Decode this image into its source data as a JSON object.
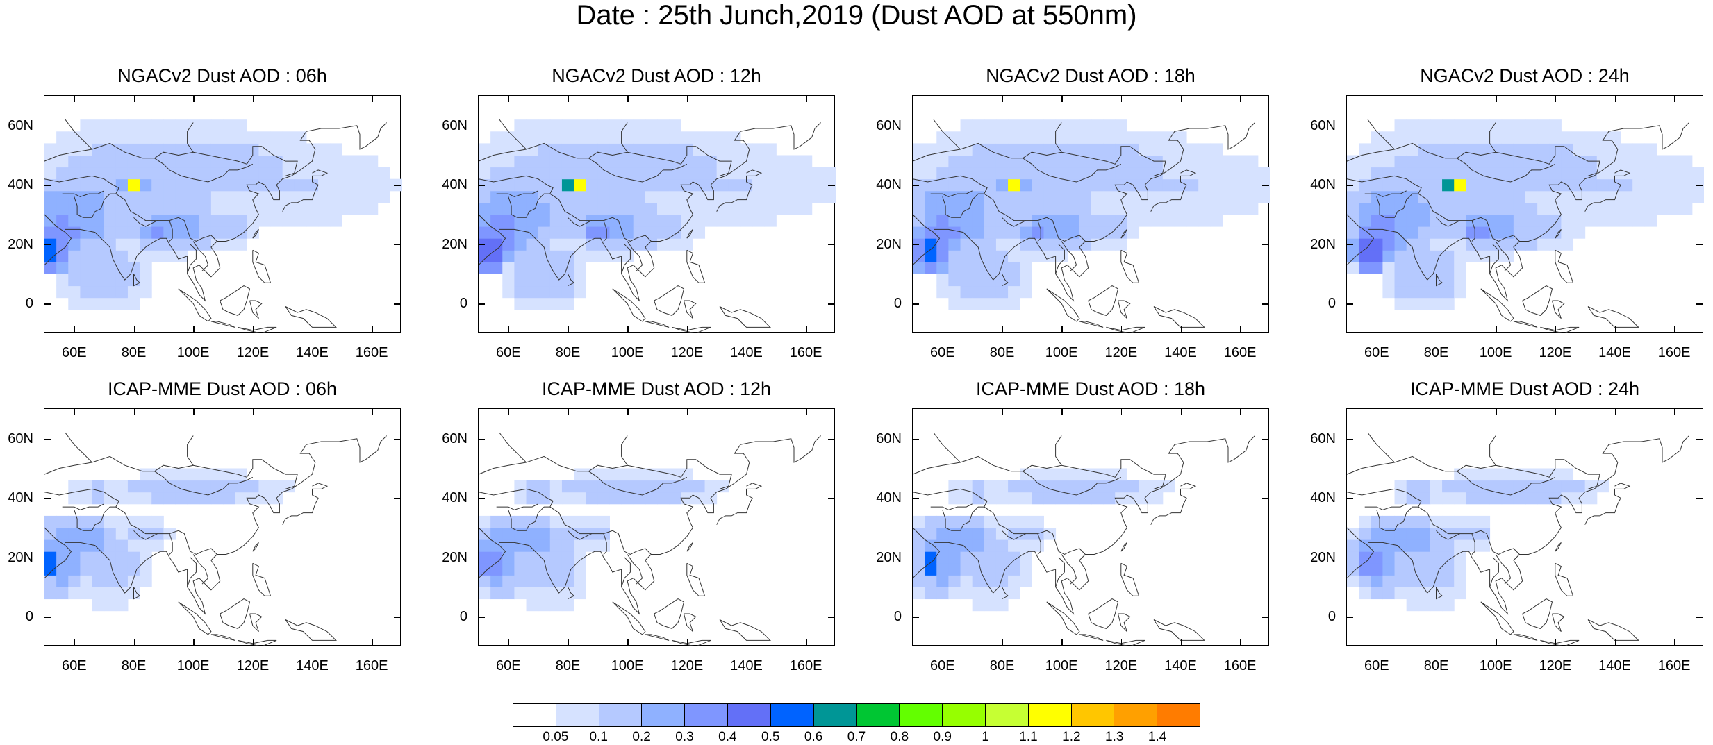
{
  "title": "Date : 25th Junch,2019 (Dust AOD at 550nm)",
  "panels": [
    {
      "title": "NGACv2 Dust AOD : 06h",
      "model": "NGACv2",
      "hour": "06h"
    },
    {
      "title": "NGACv2 Dust AOD : 12h",
      "model": "NGACv2",
      "hour": "12h"
    },
    {
      "title": "NGACv2 Dust AOD : 18h",
      "model": "NGACv2",
      "hour": "18h"
    },
    {
      "title": "NGACv2 Dust AOD : 24h",
      "model": "NGACv2",
      "hour": "24h"
    },
    {
      "title": "ICAP-MME Dust AOD : 06h",
      "model": "ICAP-MME",
      "hour": "06h"
    },
    {
      "title": "ICAP-MME Dust AOD : 12h",
      "model": "ICAP-MME",
      "hour": "12h"
    },
    {
      "title": "ICAP-MME Dust AOD : 18h",
      "model": "ICAP-MME",
      "hour": "18h"
    },
    {
      "title": "ICAP-MME Dust AOD : 24h",
      "model": "ICAP-MME",
      "hour": "24h"
    }
  ],
  "axes": {
    "lat_ticks": [
      "60N",
      "40N",
      "20N",
      "0"
    ],
    "lon_ticks": [
      "60E",
      "80E",
      "100E",
      "120E",
      "140E",
      "160E"
    ],
    "lat_range": [
      -10,
      70
    ],
    "lon_range": [
      50,
      170
    ]
  },
  "colorbar": {
    "labels": [
      "0.05",
      "0.1",
      "0.2",
      "0.3",
      "0.4",
      "0.5",
      "0.6",
      "0.7",
      "0.8",
      "0.9",
      "1",
      "1.1",
      "1.2",
      "1.3",
      "1.4"
    ],
    "colors": [
      "#ffffff",
      "#d6e2ff",
      "#b5c9ff",
      "#8fb1ff",
      "#7f96ff",
      "#6370f7",
      "#0063ff",
      "#009696",
      "#00c633",
      "#63ff00",
      "#96ff00",
      "#c6ff33",
      "#ffff00",
      "#ffc600",
      "#ffa000",
      "#ff7c00",
      "#ff1900"
    ]
  }
}
